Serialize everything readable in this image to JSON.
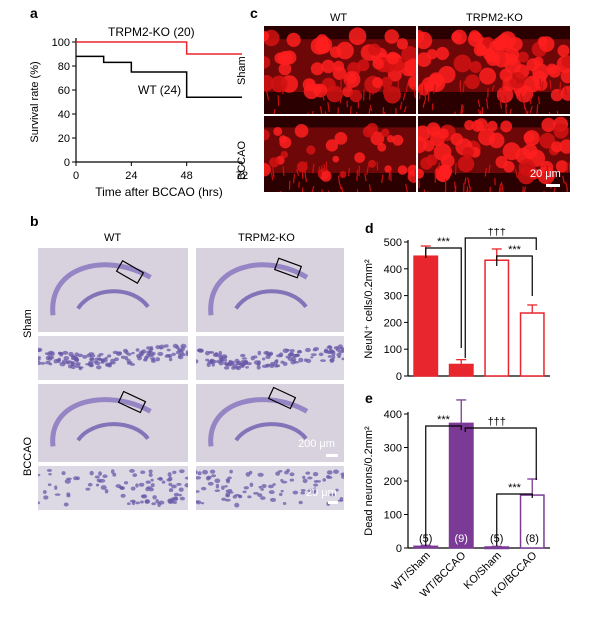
{
  "panels": {
    "a": {
      "label": "a"
    },
    "b": {
      "label": "b",
      "col_wt": "WT",
      "col_ko": "TRPM2-KO",
      "row_sham": "Sham",
      "row_bccao": "BCCAO",
      "scale_200": "200 μm",
      "scale_20": "20 μm"
    },
    "c": {
      "label": "c",
      "col_wt": "WT",
      "col_ko": "TRPM2-KO",
      "row_sham": "Sham",
      "row_bccao": "BCCAO",
      "scale": "20 μm"
    },
    "d": {
      "label": "d"
    },
    "e": {
      "label": "e"
    }
  },
  "colors": {
    "red": "#e8262d",
    "purple": "#7b3a96",
    "black": "#000000"
  },
  "chart_data": [
    {
      "id": "a",
      "type": "line",
      "title": "",
      "xlabel": "Time after BCCAO (hrs)",
      "ylabel": "Survival rate (%)",
      "xlim": [
        0,
        72
      ],
      "ylim": [
        0,
        100
      ],
      "xticks": [
        "0",
        "24",
        "48",
        "72"
      ],
      "yticks": [
        "0",
        "20",
        "40",
        "60",
        "80",
        "100"
      ],
      "step": true,
      "series": [
        {
          "name": "TRPM2-KO (20)",
          "color": "#e8262d",
          "x": [
            0,
            24,
            48,
            72
          ],
          "y": [
            100,
            100,
            90,
            90
          ]
        },
        {
          "name": "WT (24)",
          "color": "#000000",
          "x": [
            0,
            12,
            24,
            48,
            72
          ],
          "y": [
            88,
            83,
            75,
            54,
            54
          ]
        }
      ]
    },
    {
      "id": "d",
      "type": "bar",
      "ylabel": "NeuN⁺ cells/0.2mm²",
      "ylim": [
        0,
        500
      ],
      "yticks": [
        "0",
        "100",
        "200",
        "300",
        "400",
        "500"
      ],
      "categories": [
        "WT/Sham",
        "WT/BCCAO",
        "KO/Sham",
        "KO/BCCAO"
      ],
      "values": [
        447,
        43,
        432,
        235
      ],
      "errors": [
        38,
        18,
        42,
        30
      ],
      "fill": [
        "#e8262d",
        "#e8262d",
        "#ffffff",
        "#ffffff"
      ],
      "stroke": "#e8262d",
      "significance": [
        {
          "pair": [
            0,
            1
          ],
          "label": "***"
        },
        {
          "pair": [
            2,
            3
          ],
          "label": "***"
        },
        {
          "pair": [
            1,
            3
          ],
          "label": "†††"
        }
      ]
    },
    {
      "id": "e",
      "type": "bar",
      "ylabel": "Dead neurons/0.2mm²",
      "ylim": [
        0,
        400
      ],
      "yticks": [
        "0",
        "100",
        "200",
        "300",
        "400"
      ],
      "categories": [
        "WT/Sham",
        "WT/BCCAO",
        "KO/Sham",
        "KO/BCCAO"
      ],
      "values": [
        5,
        372,
        3,
        158
      ],
      "errors": [
        3,
        70,
        2,
        48
      ],
      "n_labels": [
        "(5)",
        "(9)",
        "(5)",
        "(8)"
      ],
      "fill": [
        "#7b3a96",
        "#7b3a96",
        "#ffffff",
        "#ffffff"
      ],
      "stroke": "#7b3a96",
      "significance": [
        {
          "pair": [
            0,
            1
          ],
          "label": "***"
        },
        {
          "pair": [
            2,
            3
          ],
          "label": "***"
        },
        {
          "pair": [
            1,
            3
          ],
          "label": "†††"
        }
      ]
    }
  ]
}
